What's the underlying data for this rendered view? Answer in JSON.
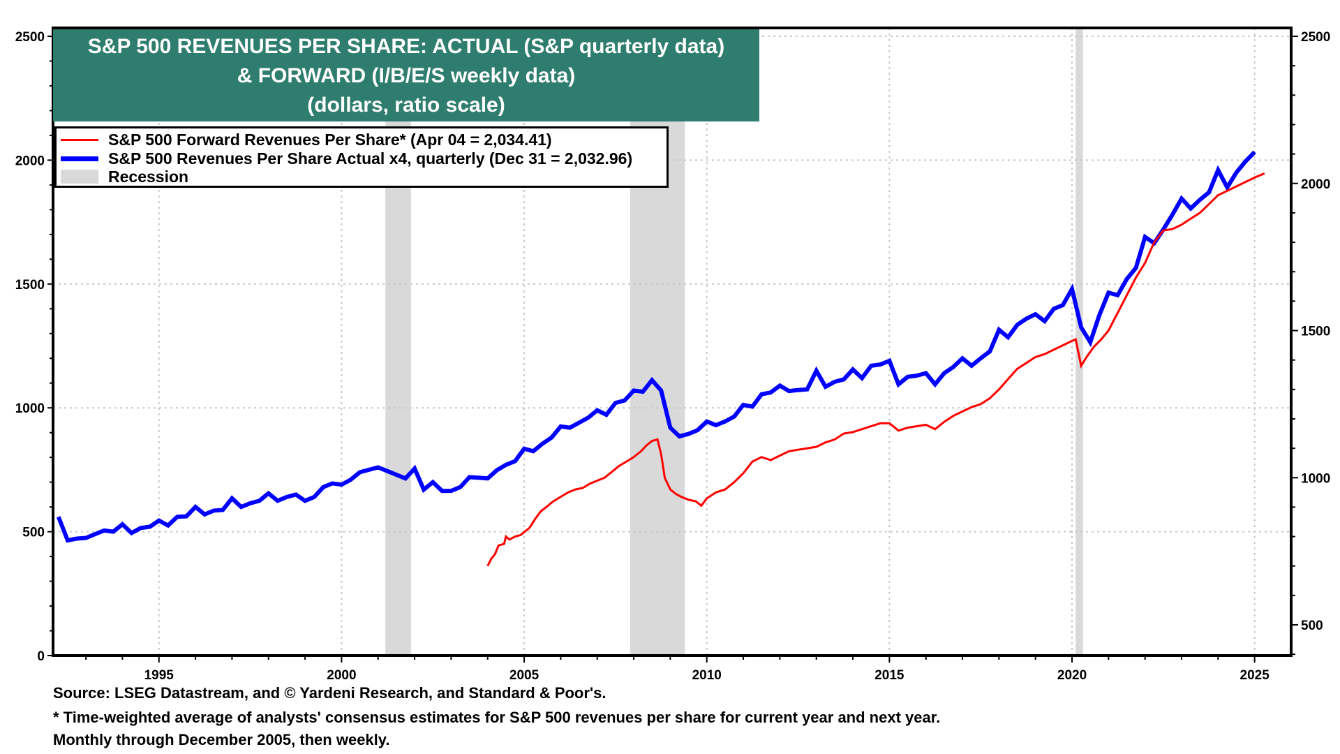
{
  "chart_data": {
    "type": "line",
    "title": [
      "S&P 500 REVENUES PER SHARE: ACTUAL (S&P quarterly data)",
      "& FORWARD (I/B/E/S weekly data)",
      "(dollars, ratio scale)"
    ],
    "xlabel": "",
    "ylabel_left": "",
    "ylabel_right": "",
    "xlim": [
      1992.1,
      2026.0
    ],
    "x_ticks": [
      1995,
      2000,
      2005,
      2010,
      2015,
      2020,
      2025
    ],
    "y_left": {
      "lim": [
        0,
        2500
      ],
      "ticks": [
        0,
        500,
        1000,
        1500,
        2000,
        2500
      ]
    },
    "y_right": {
      "lim": [
        400,
        2500
      ],
      "ticks": [
        500,
        1000,
        1500,
        2000,
        2500
      ]
    },
    "grid": true,
    "legend_position": "top-left",
    "legend": [
      {
        "label": "S&P 500 Forward Revenues Per Share* (Apr 04 = 2,034.41)",
        "color": "#ff0000",
        "kind": "line"
      },
      {
        "label": "S&P 500 Revenues Per Share Actual x4, quarterly (Dec 31 = 2,032.96)",
        "color": "#0000ff",
        "kind": "line"
      },
      {
        "label": "Recession",
        "color": "#d9d9d9",
        "kind": "band"
      }
    ],
    "recessions": [
      [
        2001.2,
        2001.9
      ],
      [
        2007.9,
        2009.4
      ],
      [
        2020.1,
        2020.3
      ]
    ],
    "series": [
      {
        "name": "S&P 500 Revenues Per Share Actual x4, quarterly",
        "axis": "left",
        "color": "#0000ff",
        "x": [
          1992.25,
          1992.5,
          1992.75,
          1993.0,
          1993.25,
          1993.5,
          1993.75,
          1994.0,
          1994.25,
          1994.5,
          1994.75,
          1995.0,
          1995.25,
          1995.5,
          1995.75,
          1996.0,
          1996.25,
          1996.5,
          1996.75,
          1997.0,
          1997.25,
          1997.5,
          1997.75,
          1998.0,
          1998.25,
          1998.5,
          1998.75,
          1999.0,
          1999.25,
          1999.5,
          1999.75,
          2000.0,
          2000.25,
          2000.5,
          2000.75,
          2001.0,
          2001.25,
          2001.5,
          2001.75,
          2002.0,
          2002.25,
          2002.5,
          2002.75,
          2003.0,
          2003.25,
          2003.5,
          2003.75,
          2004.0,
          2004.25,
          2004.5,
          2004.75,
          2005.0,
          2005.25,
          2005.5,
          2005.75,
          2006.0,
          2006.25,
          2006.5,
          2006.75,
          2007.0,
          2007.25,
          2007.5,
          2007.75,
          2008.0,
          2008.25,
          2008.5,
          2008.75,
          2009.0,
          2009.25,
          2009.5,
          2009.75,
          2010.0,
          2010.25,
          2010.5,
          2010.75,
          2011.0,
          2011.25,
          2011.5,
          2011.75,
          2012.0,
          2012.25,
          2012.5,
          2012.75,
          2013.0,
          2013.25,
          2013.5,
          2013.75,
          2014.0,
          2014.25,
          2014.5,
          2014.75,
          2015.0,
          2015.25,
          2015.5,
          2015.75,
          2016.0,
          2016.25,
          2016.5,
          2016.75,
          2017.0,
          2017.25,
          2017.5,
          2017.75,
          2018.0,
          2018.25,
          2018.5,
          2018.75,
          2019.0,
          2019.25,
          2019.5,
          2019.75,
          2020.0,
          2020.25,
          2020.5,
          2020.75,
          2021.0,
          2021.25,
          2021.5,
          2021.75,
          2022.0,
          2022.25,
          2022.5,
          2022.75,
          2023.0,
          2023.25,
          2023.5,
          2023.75,
          2024.0,
          2024.25,
          2024.5,
          2024.75,
          2025.0
        ],
        "values": [
          560,
          465,
          472,
          475,
          490,
          505,
          500,
          530,
          495,
          515,
          520,
          545,
          525,
          560,
          562,
          600,
          570,
          585,
          588,
          635,
          600,
          615,
          625,
          655,
          625,
          640,
          650,
          625,
          640,
          680,
          695,
          690,
          710,
          740,
          750,
          760,
          745,
          730,
          715,
          755,
          670,
          700,
          665,
          665,
          680,
          720,
          718,
          715,
          748,
          770,
          785,
          835,
          825,
          855,
          880,
          925,
          920,
          940,
          960,
          990,
          972,
          1020,
          1030,
          1070,
          1065,
          1112,
          1070,
          920,
          885,
          895,
          910,
          945,
          930,
          945,
          965,
          1012,
          1005,
          1055,
          1062,
          1090,
          1068,
          1072,
          1075,
          1150,
          1085,
          1105,
          1115,
          1155,
          1120,
          1170,
          1175,
          1190,
          1095,
          1125,
          1130,
          1140,
          1095,
          1140,
          1165,
          1200,
          1170,
          1200,
          1228,
          1315,
          1285,
          1335,
          1360,
          1378,
          1350,
          1400,
          1415,
          1480,
          1325,
          1265,
          1375,
          1465,
          1455,
          1520,
          1565,
          1690,
          1665,
          1720,
          1780,
          1845,
          1805,
          1840,
          1870,
          1960,
          1890,
          1950,
          1995,
          2033
        ]
      },
      {
        "name": "S&P 500 Forward Revenues Per Share*",
        "axis": "right",
        "color": "#ff0000",
        "x": [
          2004.0,
          2004.1,
          2004.2,
          2004.3,
          2004.45,
          2004.5,
          2004.6,
          2004.75,
          2004.9,
          2005.0,
          2005.15,
          2005.3,
          2005.45,
          2005.6,
          2005.8,
          2006.0,
          2006.2,
          2006.4,
          2006.6,
          2006.8,
          2007.0,
          2007.2,
          2007.4,
          2007.6,
          2007.8,
          2008.0,
          2008.2,
          2008.35,
          2008.5,
          2008.65,
          2008.75,
          2008.85,
          2009.0,
          2009.15,
          2009.3,
          2009.5,
          2009.7,
          2009.85,
          2010.0,
          2010.25,
          2010.5,
          2010.75,
          2011.0,
          2011.25,
          2011.5,
          2011.75,
          2012.0,
          2012.25,
          2012.5,
          2012.75,
          2013.0,
          2013.25,
          2013.5,
          2013.75,
          2014.0,
          2014.25,
          2014.5,
          2014.75,
          2015.0,
          2015.25,
          2015.5,
          2015.75,
          2016.0,
          2016.25,
          2016.5,
          2016.75,
          2017.0,
          2017.25,
          2017.5,
          2017.75,
          2018.0,
          2018.25,
          2018.5,
          2018.75,
          2019.0,
          2019.25,
          2019.5,
          2019.75,
          2020.0,
          2020.1,
          2020.25,
          2020.4,
          2020.6,
          2020.8,
          2021.0,
          2021.25,
          2021.5,
          2021.75,
          2022.0,
          2022.25,
          2022.5,
          2022.75,
          2023.0,
          2023.25,
          2023.5,
          2023.75,
          2024.0,
          2024.25,
          2024.5,
          2024.75,
          2025.0,
          2025.27
        ],
        "values": [
          700,
          725,
          740,
          770,
          775,
          800,
          790,
          800,
          805,
          815,
          830,
          860,
          885,
          900,
          920,
          935,
          950,
          960,
          965,
          980,
          990,
          1000,
          1020,
          1040,
          1055,
          1070,
          1090,
          1110,
          1125,
          1130,
          1080,
          1000,
          960,
          945,
          935,
          925,
          920,
          905,
          930,
          950,
          960,
          985,
          1015,
          1055,
          1070,
          1060,
          1075,
          1090,
          1095,
          1100,
          1105,
          1120,
          1130,
          1150,
          1155,
          1165,
          1175,
          1185,
          1185,
          1160,
          1170,
          1175,
          1180,
          1165,
          1190,
          1210,
          1225,
          1240,
          1250,
          1270,
          1300,
          1335,
          1370,
          1390,
          1410,
          1420,
          1435,
          1450,
          1465,
          1470,
          1380,
          1410,
          1445,
          1470,
          1500,
          1560,
          1620,
          1680,
          1730,
          1800,
          1840,
          1845,
          1860,
          1880,
          1900,
          1930,
          1960,
          1975,
          1990,
          2005,
          2020,
          2034
        ]
      }
    ]
  },
  "footnotes": {
    "source": "Source: LSEG Datastream, and © Yardeni Research, and Standard & Poor's.",
    "note": "* Time-weighted average of analysts' consensus estimates for S&P 500 revenues per share for current year and next year.",
    "frequency": "Monthly through December 2005, then weekly."
  }
}
